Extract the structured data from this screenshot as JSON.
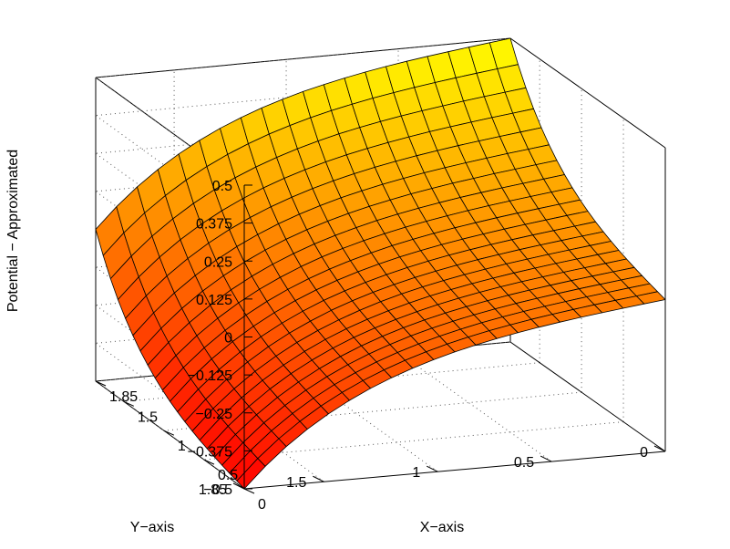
{
  "chart_data": {
    "type": "surface",
    "title": "",
    "xlabel": "X−axis",
    "ylabel": "Y−axis",
    "zlabel": "Potential − Approximated",
    "xlim": [
      0,
      1.85
    ],
    "ylim": [
      0,
      1.85
    ],
    "zlim": [
      -0.5,
      0.5
    ],
    "grid": true,
    "colormap": "autumn",
    "grid_resolution": 20,
    "surface": "z = 0.025 * (sinh(pi*x) - sinh(pi*y)) / sinh(pi*1.85) * 20 (approx.)",
    "corner_values": [
      {
        "x": 0,
        "y": 0,
        "z": 0
      },
      {
        "x": 1.85,
        "y": 0,
        "z": 0.5
      },
      {
        "x": 0,
        "y": 1.85,
        "z": -0.5
      },
      {
        "x": 1.85,
        "y": 1.85,
        "z": 0
      }
    ],
    "x_ticks": [
      {
        "value": 0,
        "label": "0"
      },
      {
        "value": 0.5,
        "label": "0.5"
      },
      {
        "value": 1,
        "label": "1"
      },
      {
        "value": 1.5,
        "label": "1.5"
      },
      {
        "value": 1.85,
        "label": "1.85"
      }
    ],
    "y_ticks": [
      {
        "value": 0,
        "label": "0"
      },
      {
        "value": 0.5,
        "label": "0.5"
      },
      {
        "value": 1,
        "label": "1"
      },
      {
        "value": 1.5,
        "label": "1.5"
      },
      {
        "value": 1.85,
        "label": "1.85"
      }
    ],
    "z_ticks": [
      {
        "value": 0.5,
        "label": "0.5"
      },
      {
        "value": 0.375,
        "label": "0.375"
      },
      {
        "value": 0.25,
        "label": "0.25"
      },
      {
        "value": 0.125,
        "label": "0.125"
      },
      {
        "value": 0,
        "label": "0"
      },
      {
        "value": -0.125,
        "label": "−0.125"
      },
      {
        "value": -0.25,
        "label": "−0.25"
      },
      {
        "value": -0.375,
        "label": "−0.375"
      },
      {
        "value": -0.5,
        "label": "−0.5"
      }
    ]
  }
}
